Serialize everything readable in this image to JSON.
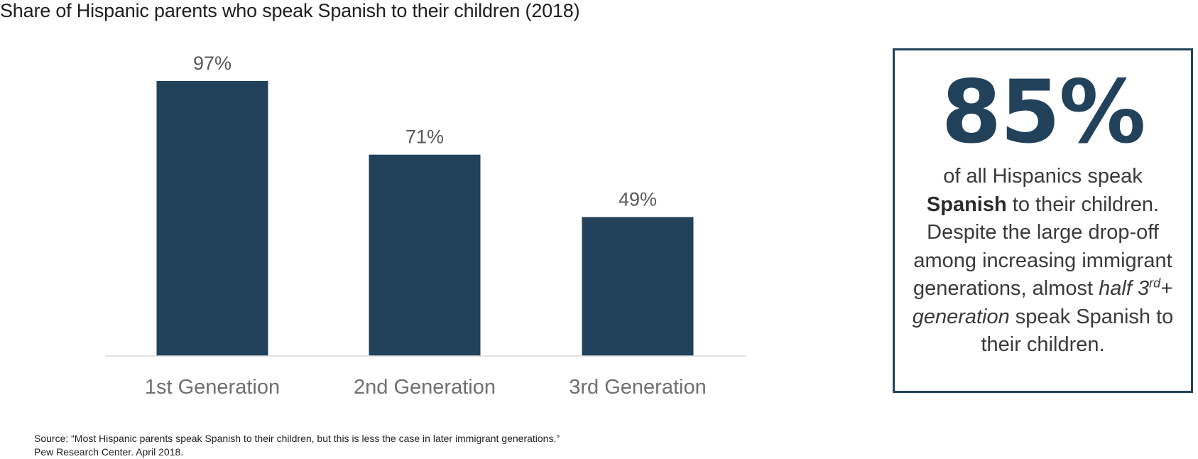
{
  "chart_data": {
    "type": "bar",
    "title": "Share of Hispanic parents who speak Spanish to their children (2018)",
    "categories": [
      "1st Generation",
      "2nd Generation",
      "3rd Generation"
    ],
    "values": [
      97,
      71,
      49
    ],
    "value_labels": [
      "97%",
      "71%",
      "49%"
    ],
    "units": "%",
    "xlabel": "",
    "ylabel": "",
    "ylim": [
      0,
      100
    ],
    "grid": false,
    "bar_color": "#22415a"
  },
  "callout": {
    "stat": "85%",
    "line1": "of all Hispanics speak",
    "bold_word": "Spanish",
    "line2_rest": " to their children.",
    "line3": "Despite the large drop-off among increasing immigrant generations, almost ",
    "italic_lead": "half 3",
    "italic_sup": "rd",
    "italic_tail": "+ generation",
    "line_end": " speak Spanish to their children.",
    "accent_color": "#22415a"
  },
  "source": "Source: “Most Hispanic parents speak Spanish to their children, but this is less the case in later immigrant generations.” Pew Research Center. April 2018."
}
